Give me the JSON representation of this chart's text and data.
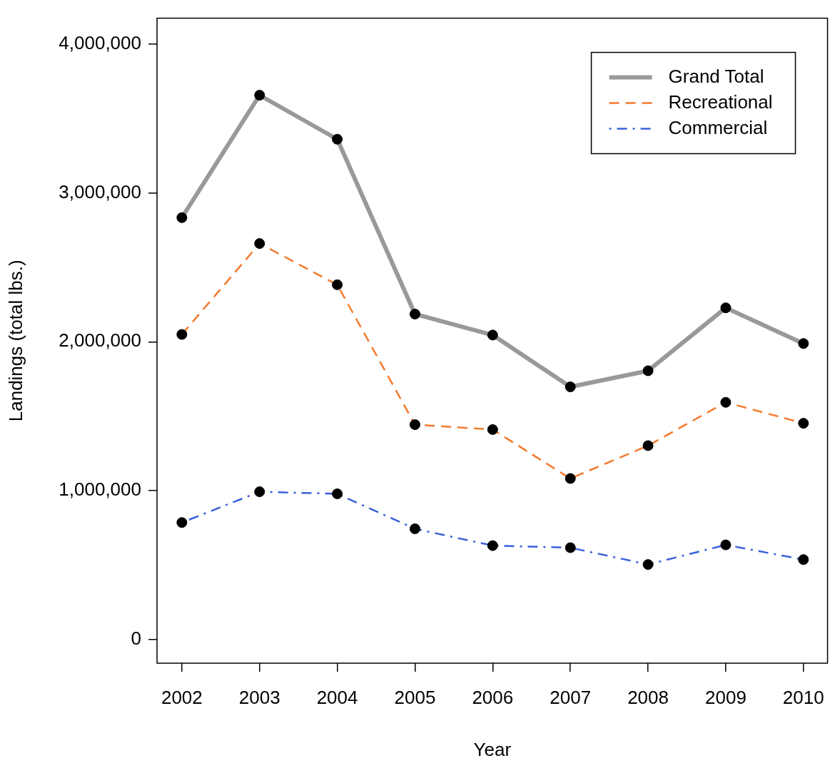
{
  "chart_data": {
    "type": "line",
    "xlabel": "Year",
    "ylabel": "Landings (total lbs.)",
    "x": [
      2002,
      2003,
      2004,
      2005,
      2006,
      2007,
      2008,
      2009,
      2010
    ],
    "xlim": [
      2001.68,
      2010.31
    ],
    "xticks": [
      2002,
      2003,
      2004,
      2005,
      2006,
      2007,
      2008,
      2009,
      2010
    ],
    "ylim": [
      -160000,
      4174000
    ],
    "yticks": [
      {
        "value": 0,
        "label": "0"
      },
      {
        "value": 1000000,
        "label": "1,000,000"
      },
      {
        "value": 2000000,
        "label": "2,000,000"
      },
      {
        "value": 3000000,
        "label": "3,000,000"
      },
      {
        "value": 4000000,
        "label": "4,000,000"
      }
    ],
    "series": [
      {
        "name": "Grand Total",
        "color": "#999999",
        "line_style": "solid",
        "values": [
          2834000,
          3657000,
          3361000,
          2186000,
          2045000,
          1697000,
          1805000,
          2228000,
          1988000
        ]
      },
      {
        "name": "Recreational",
        "color": "#f47a2e",
        "line_style": "dashed",
        "values": [
          2049000,
          2660000,
          2383000,
          1443000,
          1410000,
          1081000,
          1302000,
          1593000,
          1452000
        ]
      },
      {
        "name": "Commercial",
        "color": "#3a5fd9",
        "line_style": "dashdot",
        "values": [
          785000,
          992000,
          978000,
          743000,
          630000,
          616000,
          503000,
          635000,
          536000
        ]
      }
    ],
    "marker": "circle",
    "legend": "top right",
    "grid": false
  }
}
